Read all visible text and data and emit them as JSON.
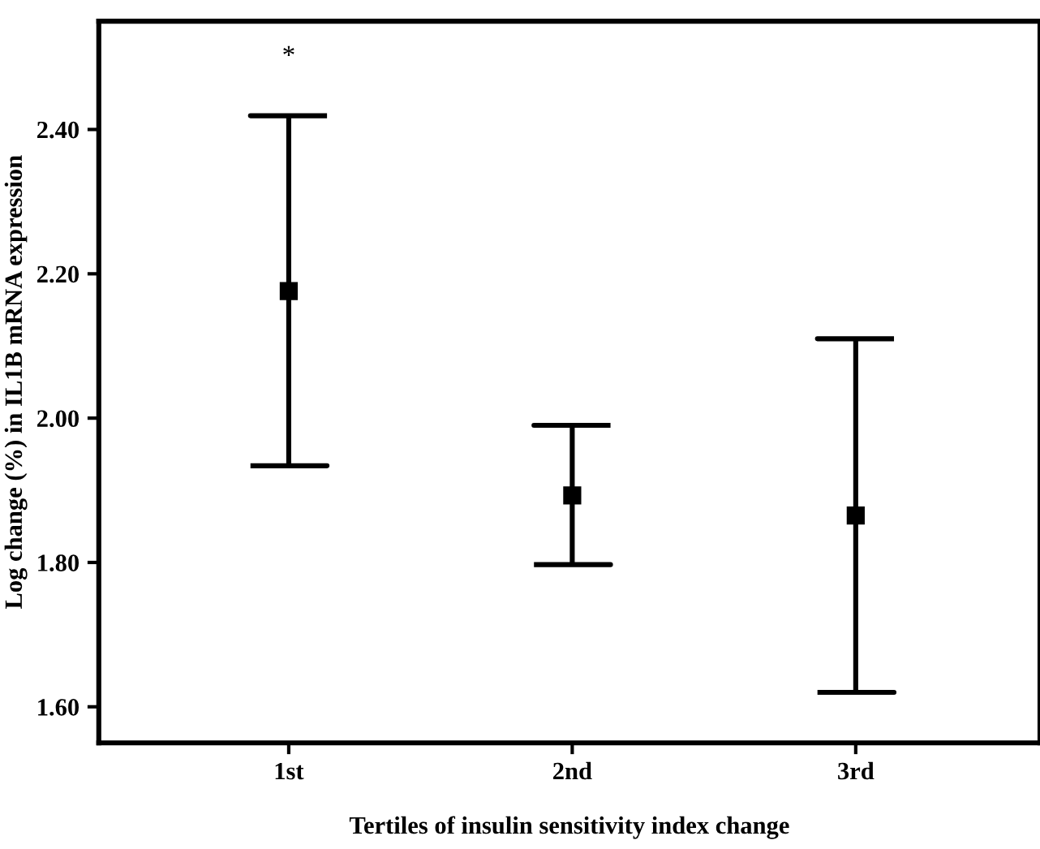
{
  "chart_data": {
    "type": "scatter",
    "xlabel": "Tertiles of insulin sensitivity index change",
    "ylabel": "Log change (%) in IL1B mRNA expression",
    "categories": [
      "1st",
      "2nd",
      "3rd"
    ],
    "values": [
      2.176,
      1.893,
      1.865
    ],
    "errors": [
      [
        1.934,
        2.419
      ],
      [
        1.797,
        1.99
      ],
      [
        1.62,
        2.11
      ]
    ],
    "color": "#000000",
    "marker": "square",
    "ylim": [
      1.55,
      2.55
    ],
    "yticks": [
      {
        "value": 1.6,
        "label": "1.60"
      },
      {
        "value": 1.8,
        "label": "1.80"
      },
      {
        "value": 2.0,
        "label": "2.00"
      },
      {
        "value": 2.2,
        "label": "2.20"
      },
      {
        "value": 2.4,
        "label": "2.40"
      }
    ],
    "annotations": [
      "*"
    ],
    "grid": false,
    "legend": false
  }
}
